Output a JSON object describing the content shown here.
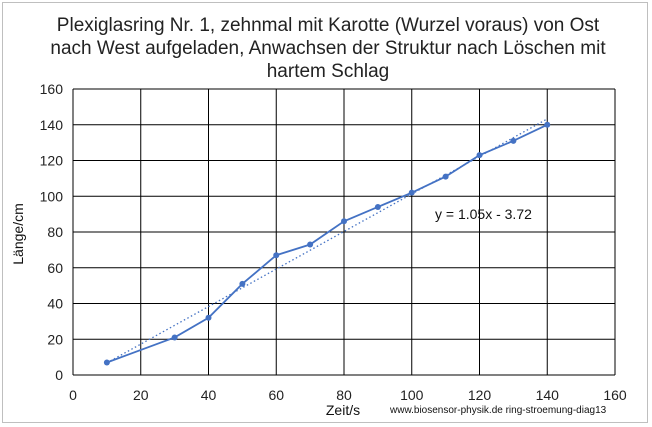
{
  "chart_data": {
    "type": "line",
    "title_lines": [
      "Plexiglasring Nr. 1, zehnmal mit Karotte (Wurzel voraus) von Ost",
      "nach West aufgeladen, Anwachsen der Struktur nach Löschen mit",
      "hartem Schlag"
    ],
    "xlabel": "Zeit/s",
    "ylabel": "Länge/cm",
    "xlim": [
      0,
      160
    ],
    "ylim": [
      0,
      160
    ],
    "x_ticks": [
      0,
      20,
      40,
      60,
      80,
      100,
      120,
      140,
      160
    ],
    "y_ticks": [
      0,
      20,
      40,
      60,
      80,
      100,
      120,
      140,
      160
    ],
    "grid": true,
    "series": [
      {
        "x": [
          10,
          30,
          40,
          50,
          60,
          70,
          80,
          90,
          100,
          110,
          120,
          130,
          140
        ],
        "y": [
          7,
          21,
          32,
          51,
          67,
          73,
          86,
          94,
          102,
          111,
          123,
          131,
          140
        ],
        "color": "#4472c4"
      }
    ],
    "trendline": {
      "equation": "y = 1.05x - 3.72",
      "slope": 1.05,
      "intercept": -3.72,
      "x_range": [
        10,
        140
      ],
      "style": "dotted",
      "color": "#4472c4"
    },
    "annotation": "www.biosensor-physik.de ring-stroemung-diag13"
  }
}
